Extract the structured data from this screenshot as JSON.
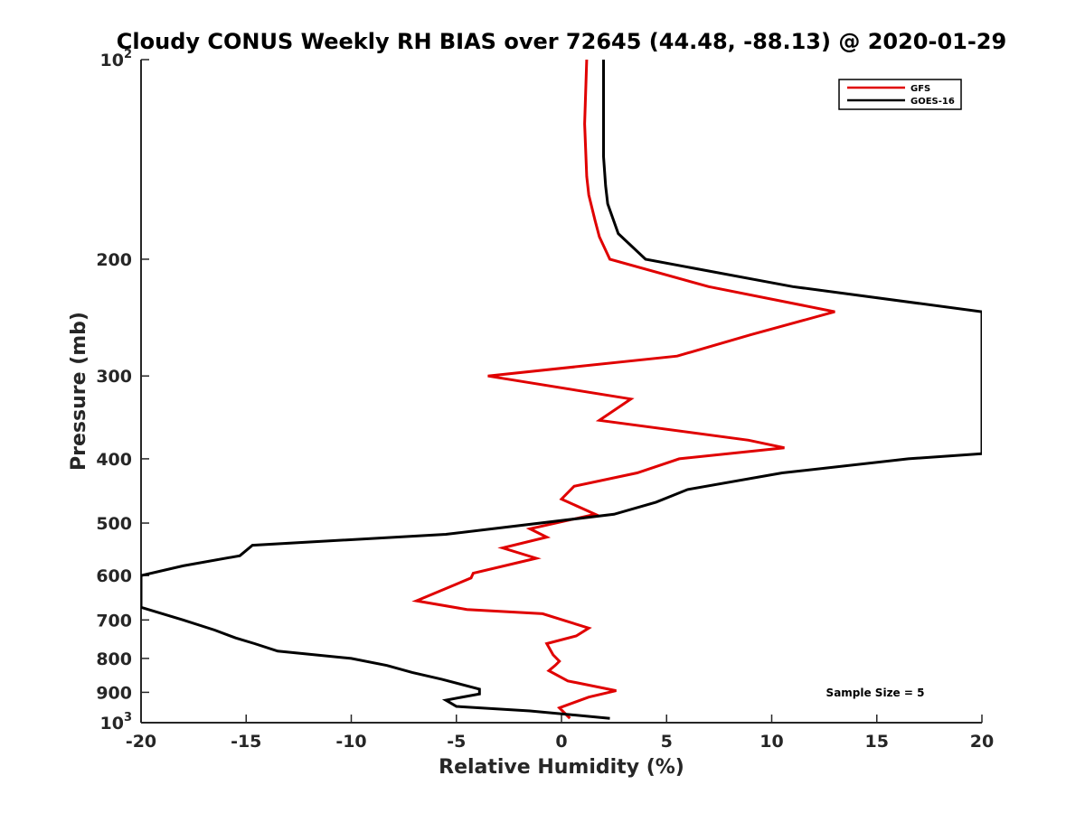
{
  "chart_data": {
    "type": "line",
    "title": "Cloudy CONUS Weekly RH BIAS over 72645 (44.48, -88.13) @ 2020-01-29",
    "xlabel": "Relative Humidity (%)",
    "ylabel": "Pressure (mb)",
    "xlim": [
      -20,
      20
    ],
    "ylim": [
      100,
      1000
    ],
    "yscale": "log",
    "y_reversed": true,
    "grid": false,
    "legend_position": "top-right",
    "x_ticks": [
      "-20",
      "-15",
      "-10",
      "-5",
      "0",
      "5",
      "10",
      "15",
      "20"
    ],
    "y_ticks": [
      {
        "value": 100,
        "base": "10",
        "exp": "2"
      },
      {
        "value": 200,
        "label": "200"
      },
      {
        "value": 300,
        "label": "300"
      },
      {
        "value": 400,
        "label": "400"
      },
      {
        "value": 500,
        "label": "500"
      },
      {
        "value": 600,
        "label": "600"
      },
      {
        "value": 700,
        "label": "700"
      },
      {
        "value": 800,
        "label": "800"
      },
      {
        "value": 900,
        "label": "900"
      },
      {
        "value": 1000,
        "base": "10",
        "exp": "3"
      }
    ],
    "annotation": "Sample Size = 5",
    "series": [
      {
        "name": "GFS",
        "color": "#e00000",
        "points": [
          [
            1.2,
            100
          ],
          [
            1.1,
            125
          ],
          [
            1.2,
            150
          ],
          [
            1.3,
            160
          ],
          [
            1.6,
            175
          ],
          [
            1.8,
            185
          ],
          [
            2.3,
            200
          ],
          [
            7.0,
            220
          ],
          [
            13.0,
            240
          ],
          [
            9.0,
            260
          ],
          [
            5.5,
            280
          ],
          [
            -3.5,
            300
          ],
          [
            3.3,
            325
          ],
          [
            1.8,
            350
          ],
          [
            8.9,
            375
          ],
          [
            10.6,
            385
          ],
          [
            5.6,
            400
          ],
          [
            3.6,
            420
          ],
          [
            0.6,
            440
          ],
          [
            0.0,
            460
          ],
          [
            1.6,
            485
          ],
          [
            -1.5,
            510
          ],
          [
            -0.7,
            525
          ],
          [
            -2.8,
            545
          ],
          [
            -1.2,
            565
          ],
          [
            -4.2,
            595
          ],
          [
            -4.3,
            605
          ],
          [
            -6.9,
            655
          ],
          [
            -4.5,
            675
          ],
          [
            -0.9,
            685
          ],
          [
            1.3,
            720
          ],
          [
            0.7,
            740
          ],
          [
            -0.7,
            760
          ],
          [
            -0.4,
            790
          ],
          [
            -0.1,
            808
          ],
          [
            -0.3,
            820
          ],
          [
            -0.6,
            835
          ],
          [
            0.3,
            865
          ],
          [
            2.6,
            895
          ],
          [
            1.3,
            915
          ],
          [
            -0.1,
            950
          ],
          [
            0.4,
            985
          ]
        ]
      },
      {
        "name": "GOES-16",
        "color": "#000000",
        "points": [
          [
            2.0,
            100
          ],
          [
            2.0,
            140
          ],
          [
            2.1,
            155
          ],
          [
            2.2,
            165
          ],
          [
            2.7,
            183
          ],
          [
            4.0,
            200
          ],
          [
            11.0,
            220
          ],
          [
            20.0,
            240
          ],
          [
            20.0,
            393
          ],
          [
            16.5,
            400
          ],
          [
            10.5,
            420
          ],
          [
            6.0,
            445
          ],
          [
            4.5,
            465
          ],
          [
            2.5,
            485
          ],
          [
            -5.5,
            520
          ],
          [
            -14.7,
            540
          ],
          [
            -15.3,
            560
          ],
          [
            -18.0,
            580
          ],
          [
            -20.0,
            600
          ],
          [
            -20.0,
            670
          ],
          [
            -18.0,
            700
          ],
          [
            -16.5,
            725
          ],
          [
            -15.5,
            745
          ],
          [
            -14.6,
            760
          ],
          [
            -13.5,
            780
          ],
          [
            -10.0,
            800
          ],
          [
            -8.3,
            820
          ],
          [
            -7.1,
            840
          ],
          [
            -5.7,
            860
          ],
          [
            -3.9,
            890
          ],
          [
            -3.9,
            905
          ],
          [
            -5.5,
            925
          ],
          [
            -5.0,
            945
          ],
          [
            -1.5,
            960
          ],
          [
            2.3,
            985
          ]
        ]
      }
    ]
  }
}
